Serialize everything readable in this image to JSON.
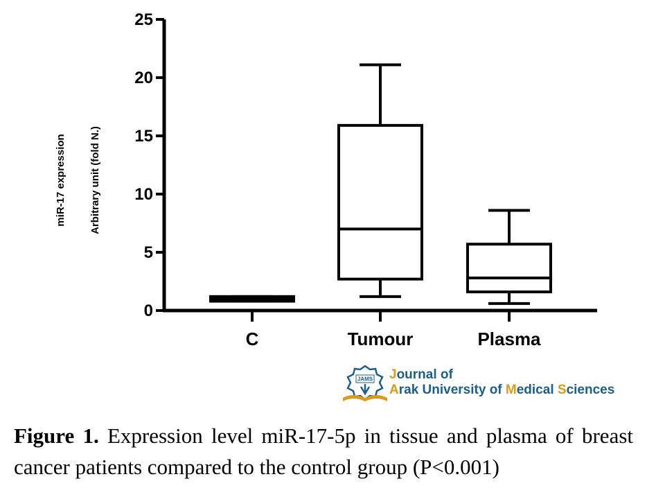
{
  "chart_data": {
    "type": "box",
    "categories": [
      "C",
      "Tumour",
      "Plasma"
    ],
    "boxes": [
      {
        "category": "C",
        "min": 0.8,
        "q1": 0.8,
        "median": 1.0,
        "q3": 1.2,
        "max": 1.2
      },
      {
        "category": "Tumour",
        "min": 1.2,
        "q1": 2.7,
        "median": 7.0,
        "q3": 15.9,
        "max": 21.1
      },
      {
        "category": "Plasma",
        "min": 0.6,
        "q1": 1.6,
        "median": 2.8,
        "q3": 5.7,
        "max": 8.6
      }
    ],
    "ylabel_line1": "miR-17 expression",
    "ylabel_line2": "Arbitrary unit (fold N.)",
    "ylim": [
      0,
      25
    ],
    "yticks": [
      0,
      5,
      10,
      15,
      20,
      25
    ],
    "ytick_labels": [
      "0",
      "5",
      "10",
      "15",
      "20",
      "25"
    ],
    "grid": false
  },
  "logo": {
    "emblem_text": "JAMS",
    "line1": "Journal of",
    "line2_parts": [
      "A",
      "rak University of ",
      "M",
      "edical ",
      "S",
      "ciences"
    ]
  },
  "caption": {
    "label": "Figure 1.",
    "text": " Expression level miR-17-5p in tissue and plasma of breast cancer patients compared to the control group (P<0.001)"
  },
  "colors": {
    "ink": "#000000",
    "logo_blue": "#1b5e8a",
    "logo_gold": "#d99a1e"
  }
}
